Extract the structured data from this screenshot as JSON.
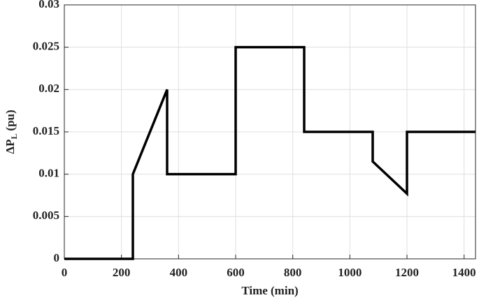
{
  "chart_data": {
    "type": "line",
    "x_label": "Time (min)",
    "y_label": "ΔP",
    "y_label_sub": "L",
    "y_label_unit": "(pu)",
    "x": [
      0,
      240,
      240,
      360,
      360,
      600,
      600,
      840,
      840,
      1080,
      1080,
      1200,
      1200,
      1440
    ],
    "series": [
      {
        "color": "#000000",
        "values": [
          0,
          0,
          0.01,
          0.02,
          0.01,
          0.01,
          0.025,
          0.025,
          0.015,
          0.015,
          0.0115,
          0.0077,
          0.015,
          0.015
        ]
      }
    ],
    "xlim": [
      0,
      1440
    ],
    "xticks": [
      0,
      200,
      400,
      600,
      800,
      1000,
      1200,
      1400
    ],
    "ylim": [
      0,
      0.03
    ],
    "yticks": [
      0,
      0.005,
      0.01,
      0.015,
      0.02,
      0.025,
      0.03
    ],
    "grid": true
  }
}
